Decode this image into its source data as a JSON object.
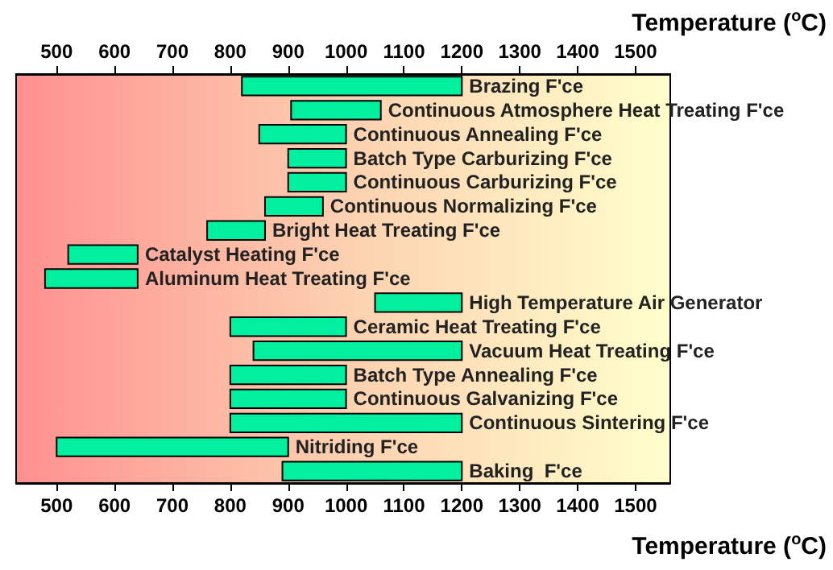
{
  "chart_data": {
    "type": "bar",
    "orientation": "horizontal",
    "tick_labels": "x",
    "xlabel": "Temperature ($^{o}$C)",
    "x2label": "Temperature ($^{o}$C)",
    "categories": [
      "Brazing F'ce",
      "Continuous Atmosphere Heat Treating F'ce",
      "Continuous Annealing F'ce",
      "Batch Type Carburizing F'ce",
      "Continuous Carburizing F'ce",
      "Continuous Normalizing F'ce",
      "Bright Heat Treating F'ce",
      "Catalyst Heating F'ce",
      "Aluminum Heat Treating F'ce",
      "High Temperature Air Generator",
      "Ceramic Heat Treating F'ce",
      "Vacuum Heat Treating F'ce",
      "Batch Type Annealing F'ce",
      "Continuous Galvanizing F'ce",
      "Continuous Sintering F'ce",
      "Nitriding F'ce",
      "Baking  F'ce"
    ],
    "base": [
      820,
      905,
      850,
      900,
      900,
      860,
      760,
      520,
      480,
      1050,
      800,
      840,
      800,
      800,
      800,
      500,
      890
    ],
    "values": [
      380,
      155,
      150,
      100,
      100,
      100,
      100,
      120,
      160,
      150,
      200,
      360,
      200,
      200,
      400,
      400,
      310
    ],
    "color": "#00f0a0",
    "xlim": [
      430,
      1560
    ],
    "xticks": [
      500,
      600,
      700,
      800,
      900,
      1000,
      1100,
      1200,
      1300,
      1400,
      1500
    ],
    "x2lim": [
      430,
      1560
    ],
    "x2ticks": [
      500,
      600,
      700,
      800,
      900,
      1000,
      1100,
      1200,
      1300,
      1400,
      1500
    ]
  }
}
